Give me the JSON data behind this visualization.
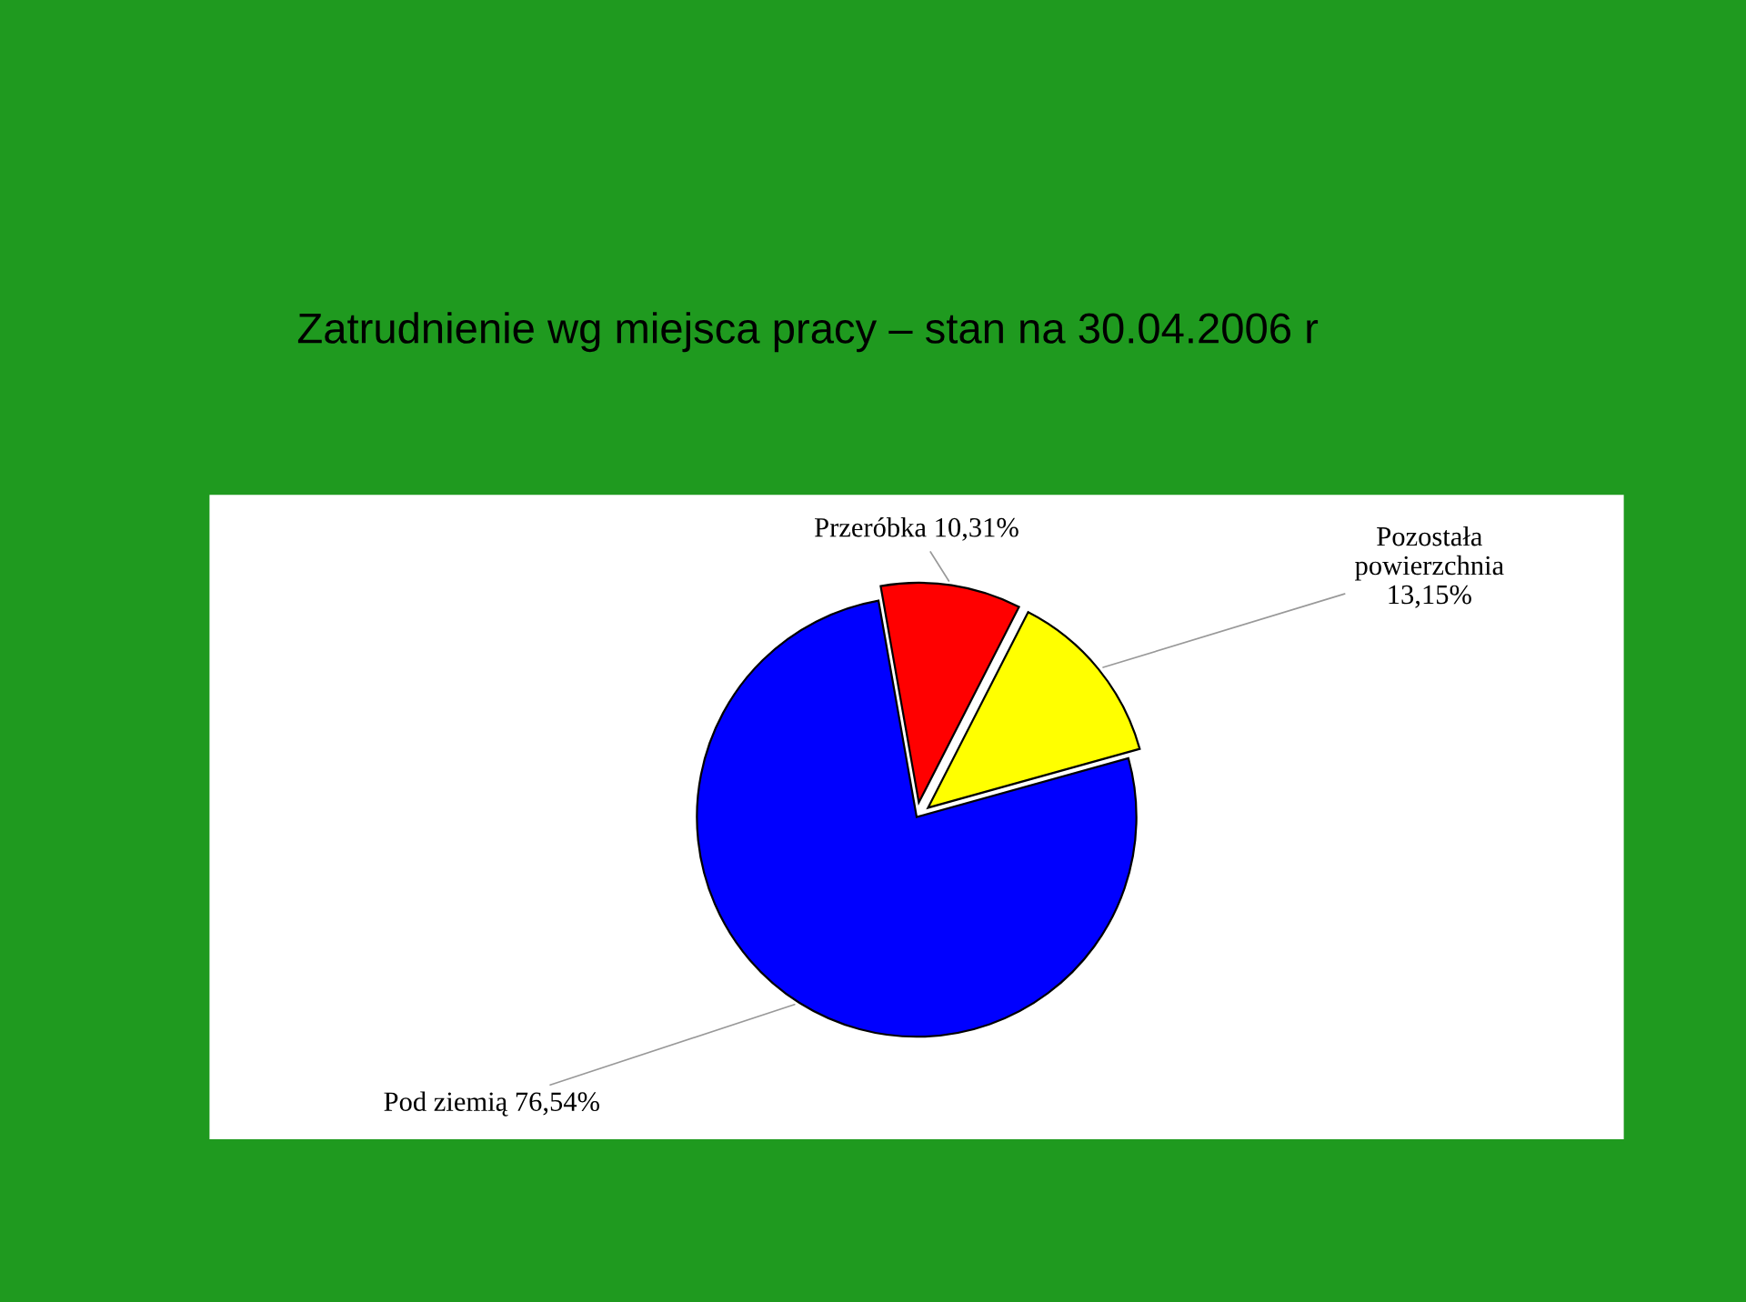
{
  "chart_data": {
    "type": "pie",
    "title": "Zatrudnienie wg miejsca pracy – stan na 30.04.2006 r",
    "categories": [
      "Przeróbka",
      "Pozostała powierzchnia",
      "Pod ziemią"
    ],
    "values": [
      10.31,
      13.15,
      76.54
    ],
    "value_labels": [
      "10,31%",
      "13,15%",
      "76,54%"
    ],
    "colors": [
      "#ff0000",
      "#ffff00",
      "#0000ff"
    ]
  }
}
